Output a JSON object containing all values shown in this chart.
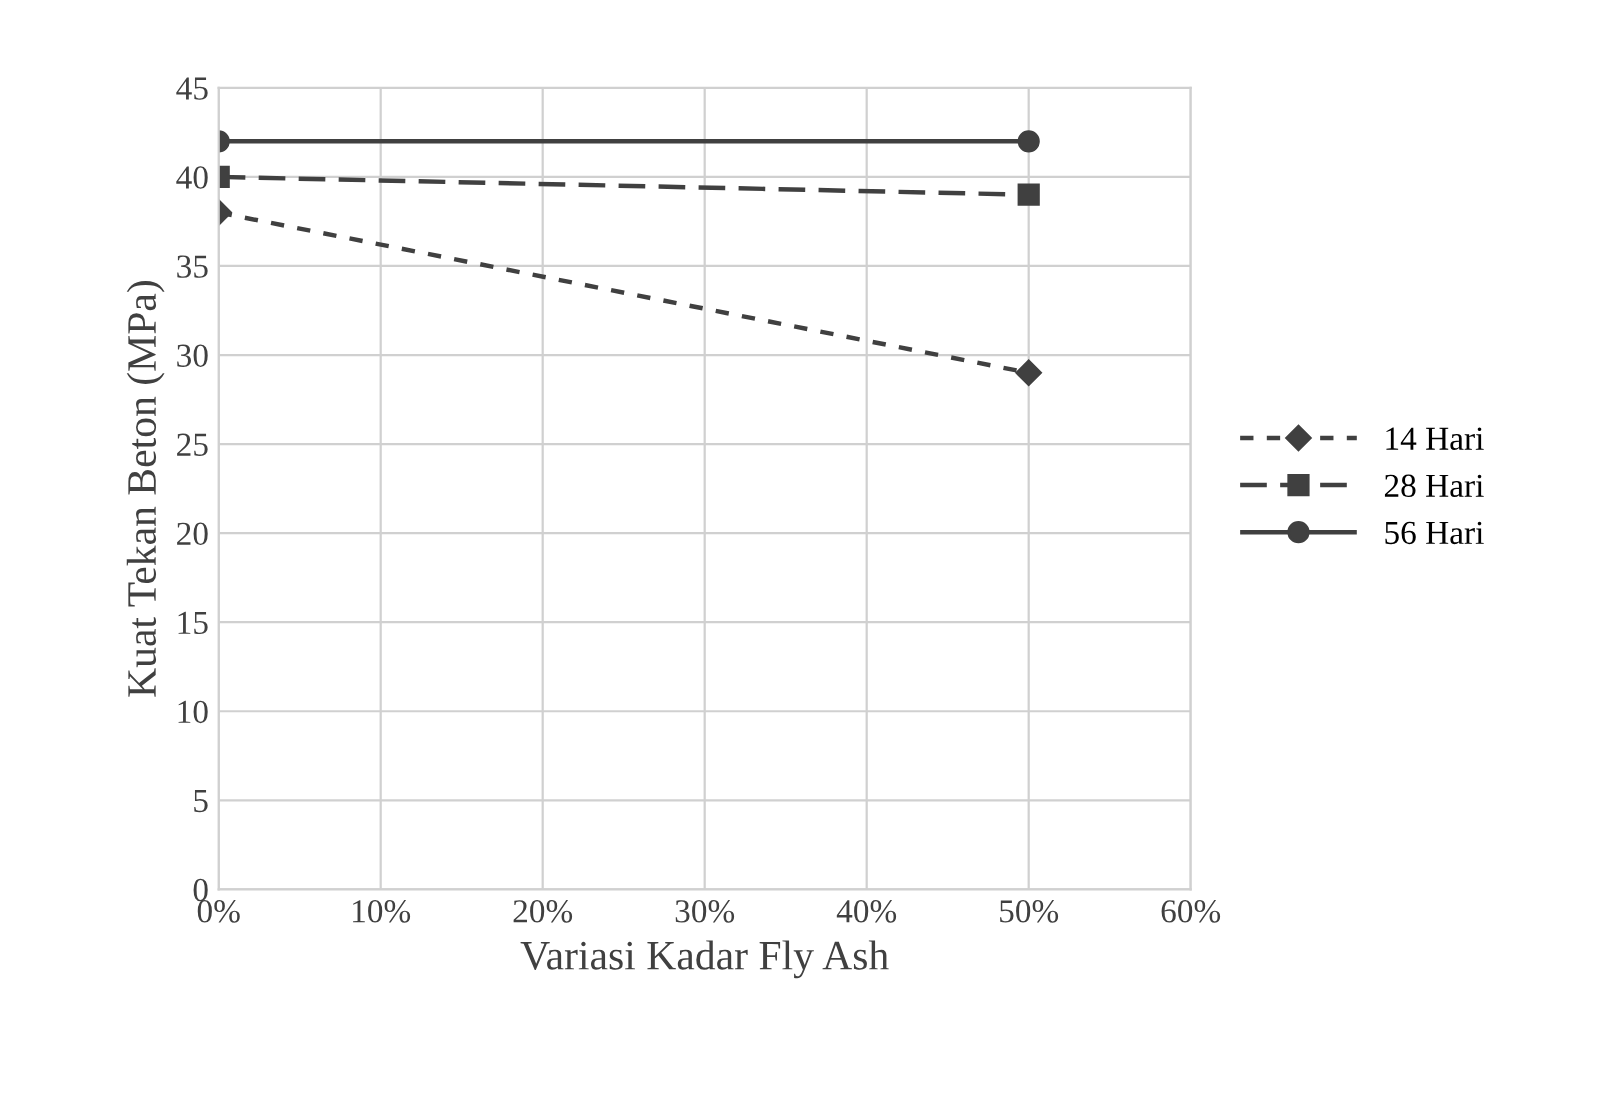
{
  "chart_data": {
    "type": "line",
    "xlabel": "Variasi Kadar Fly Ash",
    "ylabel": "Kuat Tekan Beton (MPa)",
    "x": [
      0,
      50
    ],
    "series": [
      {
        "name": "14 Hari",
        "color": "#404040",
        "values": [
          38,
          29
        ],
        "marker": "diamond",
        "line_style": "dotted"
      },
      {
        "name": "28 Hari",
        "color": "#404040",
        "values": [
          40,
          39
        ],
        "marker": "square",
        "line_style": "dashed"
      },
      {
        "name": "56 Hari",
        "color": "#404040",
        "values": [
          42,
          42
        ],
        "marker": "circle",
        "line_style": "solid"
      }
    ],
    "xlim": [
      0,
      60
    ],
    "xticks": [
      {
        "value": 0,
        "label": "0%"
      },
      {
        "value": 10,
        "label": "10%"
      },
      {
        "value": 20,
        "label": "20%"
      },
      {
        "value": 30,
        "label": "30%"
      },
      {
        "value": 40,
        "label": "40%"
      },
      {
        "value": 50,
        "label": "50%"
      },
      {
        "value": 60,
        "label": "60%"
      }
    ],
    "ylim": [
      0,
      45
    ],
    "yticks": [
      0,
      5,
      10,
      15,
      20,
      25,
      30,
      35,
      40,
      45
    ],
    "grid": true,
    "legend": "right"
  }
}
